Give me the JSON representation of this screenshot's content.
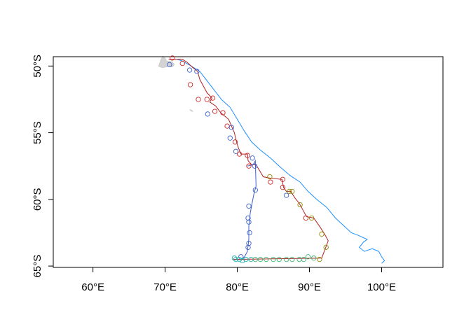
{
  "map": {
    "x_ticks": [
      {
        "value": 60,
        "label": "60°E"
      },
      {
        "value": 70,
        "label": "70°E"
      },
      {
        "value": 80,
        "label": "80°E"
      },
      {
        "value": 90,
        "label": "90°E"
      },
      {
        "value": 100,
        "label": "100°E"
      }
    ],
    "y_ticks": [
      {
        "value": -50,
        "label": "50°S"
      },
      {
        "value": -55,
        "label": "55°S"
      },
      {
        "value": -60,
        "label": "60°S"
      },
      {
        "value": -65,
        "label": "65°S"
      }
    ],
    "xlim": [
      54.5,
      108.5
    ],
    "ylim": [
      -65.1,
      -49.3
    ],
    "colors": {
      "land": "#d3d3d3",
      "front": "#1e90ff",
      "track": "#b22222",
      "points_blue": "#3a5fcd",
      "points_red": "#cd2626",
      "points_olive": "#8b8b00",
      "points_green": "#3cb371",
      "points_teal": "#20b2aa"
    },
    "front_line": [
      [
        71.6,
        -49.5
      ],
      [
        72.3,
        -49.6
      ],
      [
        73.6,
        -50.0
      ],
      [
        74.8,
        -50.4
      ],
      [
        75.8,
        -51.1
      ],
      [
        76.8,
        -51.8
      ],
      [
        77.8,
        -52.5
      ],
      [
        79.0,
        -53.1
      ],
      [
        80.0,
        -54.0
      ],
      [
        81.0,
        -54.9
      ],
      [
        82.0,
        -55.7
      ],
      [
        83.2,
        -56.3
      ],
      [
        84.6,
        -56.9
      ],
      [
        86.0,
        -57.6
      ],
      [
        87.3,
        -58.2
      ],
      [
        88.7,
        -58.7
      ],
      [
        89.8,
        -59.4
      ],
      [
        91.0,
        -60.0
      ],
      [
        92.4,
        -60.6
      ],
      [
        93.6,
        -61.4
      ],
      [
        94.6,
        -61.9
      ],
      [
        95.8,
        -62.5
      ],
      [
        96.8,
        -62.7
      ],
      [
        98.0,
        -63.0
      ],
      [
        97.5,
        -63.2
      ],
      [
        96.9,
        -63.6
      ],
      [
        97.6,
        -63.9
      ],
      [
        98.7,
        -63.7
      ],
      [
        99.6,
        -63.9
      ],
      [
        100.0,
        -64.3
      ],
      [
        100.4,
        -64.6
      ],
      [
        100.0,
        -64.8
      ]
    ],
    "track_line": [
      [
        70.5,
        -49.5
      ],
      [
        72.4,
        -49.5
      ],
      [
        73.0,
        -49.7
      ],
      [
        73.8,
        -50.1
      ],
      [
        74.5,
        -50.4
      ],
      [
        74.8,
        -51.0
      ],
      [
        75.2,
        -51.4
      ],
      [
        75.8,
        -52.0
      ],
      [
        76.5,
        -52.4
      ],
      [
        76.2,
        -52.7
      ],
      [
        77.0,
        -53.0
      ],
      [
        77.7,
        -53.5
      ],
      [
        78.8,
        -54.0
      ],
      [
        79.2,
        -54.5
      ],
      [
        79.6,
        -55.0
      ],
      [
        79.9,
        -55.7
      ],
      [
        80.2,
        -56.2
      ],
      [
        80.5,
        -56.6
      ],
      [
        81.4,
        -56.6
      ],
      [
        81.5,
        -57.1
      ],
      [
        82.0,
        -57.4
      ],
      [
        82.6,
        -57.4
      ],
      [
        83.6,
        -58.3
      ],
      [
        84.5,
        -58.4
      ],
      [
        86.2,
        -58.5
      ],
      [
        86.4,
        -59.1
      ],
      [
        86.8,
        -59.4
      ],
      [
        87.4,
        -59.4
      ],
      [
        88.0,
        -59.9
      ],
      [
        88.6,
        -60.3
      ],
      [
        89.0,
        -60.7
      ],
      [
        89.6,
        -61.3
      ],
      [
        90.6,
        -61.4
      ],
      [
        91.5,
        -62.1
      ],
      [
        92.1,
        -62.6
      ],
      [
        92.6,
        -63.1
      ],
      [
        91.7,
        -64.4
      ],
      [
        79.4,
        -64.5
      ]
    ],
    "inner_track": [
      [
        81.4,
        -57.5
      ],
      [
        82.2,
        -57.4
      ],
      [
        82.5,
        -57.1
      ],
      [
        82.6,
        -59.0
      ],
      [
        82.3,
        -59.6
      ],
      [
        81.8,
        -61.0
      ],
      [
        81.6,
        -62.0
      ],
      [
        81.6,
        -63.0
      ],
      [
        81.4,
        -63.9
      ],
      [
        81.0,
        -64.3
      ],
      [
        80.6,
        -64.5
      ]
    ],
    "points": [
      {
        "lon": 70.6,
        "lat": -49.9,
        "c": "points_blue"
      },
      {
        "lon": 71.0,
        "lat": -49.4,
        "c": "points_red"
      },
      {
        "lon": 72.4,
        "lat": -49.8,
        "c": "points_red"
      },
      {
        "lon": 73.4,
        "lat": -50.3,
        "c": "points_blue"
      },
      {
        "lon": 74.4,
        "lat": -50.4,
        "c": "points_blue"
      },
      {
        "lon": 73.5,
        "lat": -51.4,
        "c": "points_red"
      },
      {
        "lon": 74.6,
        "lat": -52.5,
        "c": "points_red"
      },
      {
        "lon": 75.8,
        "lat": -52.5,
        "c": "points_red"
      },
      {
        "lon": 76.6,
        "lat": -52.4,
        "c": "points_red"
      },
      {
        "lon": 75.9,
        "lat": -53.6,
        "c": "points_blue"
      },
      {
        "lon": 76.9,
        "lat": -53.4,
        "c": "points_red"
      },
      {
        "lon": 78.0,
        "lat": -53.5,
        "c": "points_red"
      },
      {
        "lon": 78.6,
        "lat": -54.5,
        "c": "points_red"
      },
      {
        "lon": 79.2,
        "lat": -54.6,
        "c": "points_blue"
      },
      {
        "lon": 79.0,
        "lat": -55.4,
        "c": "points_blue"
      },
      {
        "lon": 79.7,
        "lat": -55.7,
        "c": "points_red"
      },
      {
        "lon": 79.8,
        "lat": -56.4,
        "c": "points_blue"
      },
      {
        "lon": 80.3,
        "lat": -56.6,
        "c": "points_red"
      },
      {
        "lon": 81.4,
        "lat": -56.7,
        "c": "points_red"
      },
      {
        "lon": 82.1,
        "lat": -56.9,
        "c": "points_blue"
      },
      {
        "lon": 82.4,
        "lat": -57.5,
        "c": "points_blue"
      },
      {
        "lon": 81.6,
        "lat": -57.5,
        "c": "points_red"
      },
      {
        "lon": 84.5,
        "lat": -58.3,
        "c": "points_olive"
      },
      {
        "lon": 84.6,
        "lat": -58.7,
        "c": "points_red"
      },
      {
        "lon": 86.3,
        "lat": -58.5,
        "c": "points_red"
      },
      {
        "lon": 86.3,
        "lat": -59.1,
        "c": "points_red"
      },
      {
        "lon": 87.2,
        "lat": -59.4,
        "c": "points_olive"
      },
      {
        "lon": 87.6,
        "lat": -59.4,
        "c": "points_olive"
      },
      {
        "lon": 86.8,
        "lat": -59.7,
        "c": "points_blue"
      },
      {
        "lon": 88.7,
        "lat": -60.4,
        "c": "points_olive"
      },
      {
        "lon": 89.5,
        "lat": -61.4,
        "c": "points_red"
      },
      {
        "lon": 90.3,
        "lat": -61.4,
        "c": "points_olive"
      },
      {
        "lon": 91.7,
        "lat": -62.6,
        "c": "points_olive"
      },
      {
        "lon": 92.3,
        "lat": -63.6,
        "c": "points_olive"
      },
      {
        "lon": 82.5,
        "lat": -59.3,
        "c": "points_blue"
      },
      {
        "lon": 81.6,
        "lat": -60.5,
        "c": "points_blue"
      },
      {
        "lon": 81.5,
        "lat": -61.4,
        "c": "points_blue"
      },
      {
        "lon": 81.6,
        "lat": -61.7,
        "c": "points_blue"
      },
      {
        "lon": 81.7,
        "lat": -62.5,
        "c": "points_blue"
      },
      {
        "lon": 81.6,
        "lat": -63.3,
        "c": "points_blue"
      },
      {
        "lon": 81.5,
        "lat": -63.6,
        "c": "points_blue"
      },
      {
        "lon": 80.5,
        "lat": -64.3,
        "c": "points_blue"
      },
      {
        "lon": 79.6,
        "lat": -64.4,
        "c": "points_teal"
      },
      {
        "lon": 79.8,
        "lat": -64.5,
        "c": "points_teal"
      },
      {
        "lon": 80.3,
        "lat": -64.5,
        "c": "points_teal"
      },
      {
        "lon": 80.7,
        "lat": -64.6,
        "c": "points_teal"
      },
      {
        "lon": 81.2,
        "lat": -64.5,
        "c": "points_teal"
      },
      {
        "lon": 81.9,
        "lat": -64.5,
        "c": "points_teal"
      },
      {
        "lon": 82.5,
        "lat": -64.5,
        "c": "points_green"
      },
      {
        "lon": 83.2,
        "lat": -64.5,
        "c": "points_green"
      },
      {
        "lon": 84.0,
        "lat": -64.5,
        "c": "points_green"
      },
      {
        "lon": 85.0,
        "lat": -64.5,
        "c": "points_green"
      },
      {
        "lon": 85.8,
        "lat": -64.5,
        "c": "points_green"
      },
      {
        "lon": 86.8,
        "lat": -64.5,
        "c": "points_green"
      },
      {
        "lon": 87.6,
        "lat": -64.5,
        "c": "points_green"
      },
      {
        "lon": 88.6,
        "lat": -64.5,
        "c": "points_green"
      },
      {
        "lon": 89.2,
        "lat": -64.5,
        "c": "points_green"
      },
      {
        "lon": 89.8,
        "lat": -64.3,
        "c": "points_green"
      },
      {
        "lon": 90.6,
        "lat": -64.4,
        "c": "points_green"
      },
      {
        "lon": 91.4,
        "lat": -64.5,
        "c": "points_olive"
      }
    ]
  }
}
